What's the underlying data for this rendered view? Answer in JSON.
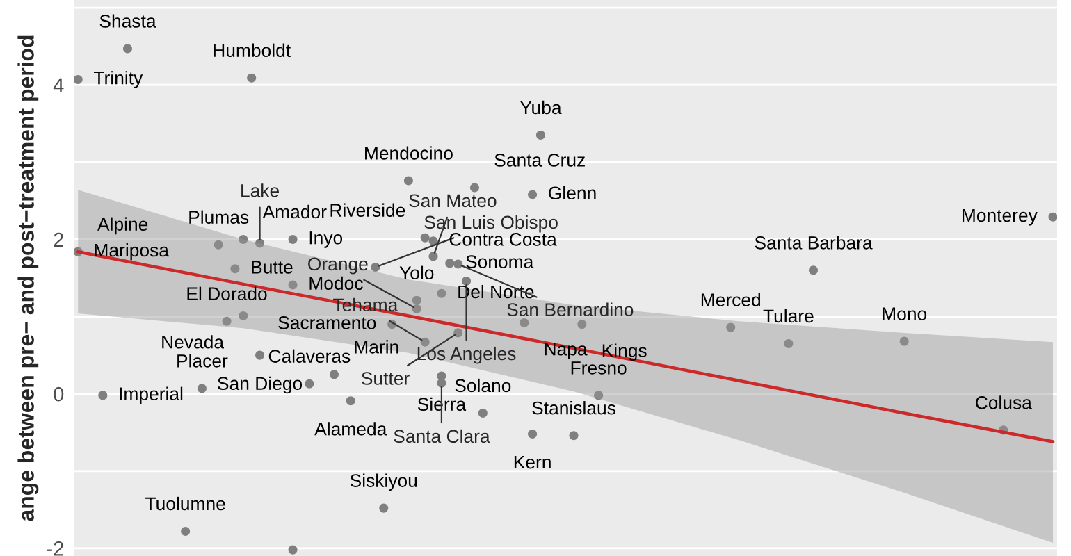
{
  "chart_data": {
    "type": "scatter",
    "ylabel": "ange between pre− and post−treatment period",
    "categories": [
      null,
      null,
      null,
      null,
      null,
      null,
      null,
      null,
      null,
      null,
      null,
      null,
      null,
      null,
      null,
      null,
      null,
      null,
      null,
      null,
      null,
      null,
      null,
      null,
      null,
      null,
      null,
      null,
      null,
      null,
      null,
      null,
      null,
      null,
      null,
      null,
      null,
      null,
      null,
      null,
      null,
      null,
      null,
      null,
      null,
      null,
      null,
      null,
      null,
      null,
      null,
      null,
      null,
      null,
      null,
      null,
      null,
      null,
      null,
      null,
      null,
      null,
      null,
      null,
      null,
      null,
      null,
      null,
      null,
      null,
      null,
      null,
      null,
      null,
      null,
      null,
      null,
      null,
      null,
      null,
      null,
      null,
      null,
      null,
      null,
      null,
      null,
      null,
      null,
      null,
      null,
      null,
      null,
      null,
      null,
      null,
      null,
      null,
      null,
      null,
      null,
      null,
      null,
      null,
      null,
      null,
      null,
      null,
      null,
      null,
      null,
      null,
      null,
      null,
      null,
      null,
      null,
      null,
      null
    ],
    "ylim": [
      -2.1,
      5.1
    ],
    "yticks": [
      -2,
      {
        "value": -1,
        "label": null
      },
      0,
      {
        "value": 1,
        "label": null
      },
      2,
      {
        "value": 3,
        "label": null
      },
      4,
      {
        "value": 5,
        "label": null
      }
    ],
    "tick_labels": "y",
    "grid": true,
    "series": [
      {
        "color": "#7f7f7f",
        "marker": "circle",
        "values": [
          4.07,
          null,
          null,
          -0.02,
          null,
          null,
          4.47,
          null,
          null,
          null,
          null,
          null,
          null,
          -1.78,
          null,
          0.07,
          null,
          1.93,
          0.94,
          1.62,
          2.0,
          4.09,
          1.95,
          null,
          null,
          null,
          2.0,
          null,
          0.13,
          null,
          null,
          0.25,
          null,
          -0.09,
          null,
          null,
          1.64,
          -1.48,
          0.9,
          null,
          2.76,
          1.21,
          2.02,
          1.98,
          1.3,
          1.69,
          1.68,
          1.46,
          2.67,
          -0.25,
          null,
          null,
          null,
          null,
          0.92,
          2.58,
          3.35,
          null,
          null,
          null,
          -0.54,
          0.9,
          null,
          -0.02,
          null,
          null,
          null,
          null,
          null,
          null,
          null,
          null,
          null,
          null,
          null,
          null,
          null,
          null,
          null,
          0.86,
          null,
          null,
          null,
          null,
          null,
          null,
          0.65,
          null,
          null,
          1.6,
          null,
          null,
          null,
          null,
          null,
          null,
          null,
          null,
          null,
          null,
          0.68,
          null,
          null,
          null,
          null,
          null,
          null,
          null,
          null,
          null,
          null,
          null,
          -0.47,
          null,
          null,
          null,
          null,
          null,
          2.29
        ],
        "value_labels": [
          "Trinity",
          null,
          null,
          "Imperial",
          null,
          null,
          "Shasta",
          null,
          null,
          null,
          null,
          null,
          null,
          "Tuolumne",
          null,
          "Placer",
          null,
          "Plumas",
          "El Dorado",
          "Butte",
          "Amador",
          "Humboldt",
          "Lake",
          null,
          null,
          null,
          "Inyo",
          null,
          "Calaveras",
          null,
          null,
          "Marin",
          null,
          "Alameda",
          null,
          null,
          "San Luis Obispo",
          "Siskiyou",
          "Sacramento",
          null,
          "Mendocino",
          "Yolo",
          "Riverside",
          "Contra Costa",
          "Del Norte",
          "Sonoma",
          "San Bernardino",
          "Los Angeles",
          "Santa Cruz",
          "Solano",
          null,
          null,
          null,
          null,
          "Napa",
          "Glenn",
          "Yuba",
          null,
          null,
          null,
          "Stanislaus",
          "Kings",
          null,
          "Fresno",
          null,
          null,
          null,
          null,
          null,
          null,
          null,
          null,
          null,
          null,
          null,
          null,
          null,
          null,
          null,
          "Merced",
          null,
          null,
          null,
          null,
          null,
          null,
          "Tulare",
          null,
          null,
          "Santa Barbara",
          null,
          null,
          null,
          null,
          null,
          null,
          null,
          null,
          null,
          null,
          "Mono",
          null,
          null,
          null,
          null,
          null,
          null,
          null,
          null,
          null,
          null,
          null,
          "Colusa",
          null,
          null,
          null,
          null,
          null,
          "Monterey"
        ]
      },
      {
        "color": "#7f7f7f",
        "marker": "circle",
        "values": [
          1.84,
          null,
          null,
          null,
          null,
          null,
          null,
          null,
          null,
          null,
          null,
          null,
          null,
          null,
          null,
          null,
          null,
          null,
          null,
          null,
          1.01,
          null,
          0.5,
          null,
          null,
          null,
          1.41,
          null,
          null,
          null,
          null,
          null,
          null,
          null,
          null,
          null,
          null,
          null,
          null,
          null,
          null,
          1.1,
          0.67,
          1.78,
          0.23,
          null,
          0.79,
          null,
          null,
          null,
          null,
          null,
          null,
          null,
          null,
          -0.52,
          null,
          null,
          null,
          null,
          null,
          null,
          null,
          null,
          null,
          null,
          null,
          null,
          null,
          null,
          null,
          null,
          null,
          null,
          null,
          null,
          null,
          null,
          null,
          null,
          null,
          null,
          null,
          null,
          null,
          null,
          null,
          null,
          null,
          null,
          null,
          null,
          null,
          null,
          null,
          null,
          null,
          null,
          null,
          null,
          null,
          null,
          null,
          null,
          null,
          null,
          null,
          null,
          null,
          null,
          null,
          null,
          null,
          null,
          null,
          null,
          null,
          null,
          null
        ],
        "value_labels": [
          "Mariposa",
          null,
          null,
          null,
          null,
          null,
          null,
          null,
          null,
          null,
          null,
          null,
          null,
          null,
          null,
          null,
          null,
          null,
          null,
          null,
          "Nevada",
          null,
          "San Diego",
          null,
          null,
          null,
          "Modoc",
          null,
          null,
          null,
          null,
          null,
          null,
          null,
          null,
          null,
          null,
          null,
          null,
          null,
          null,
          "Orange",
          "Tehama",
          "San Mateo",
          "Sierra",
          null,
          "Sutter",
          null,
          null,
          null,
          null,
          null,
          null,
          null,
          null,
          "Kern",
          null,
          null,
          null,
          null,
          null,
          null,
          null,
          null,
          null,
          null,
          null,
          null,
          null,
          null,
          null,
          null,
          null,
          null,
          null,
          null,
          null,
          null,
          null,
          null,
          null,
          null,
          null,
          null,
          null,
          null,
          null,
          null,
          null,
          null,
          null,
          null,
          null,
          null,
          null,
          null,
          null,
          null,
          null,
          null,
          null,
          null,
          null,
          null,
          null,
          null,
          null,
          null,
          null,
          null,
          null,
          null,
          null,
          null,
          null,
          null,
          null,
          null,
          null
        ]
      },
      {
        "color": "#7f7f7f",
        "marker": "circle",
        "values": [
          1.84,
          null,
          null,
          null,
          null,
          null,
          null,
          null,
          null,
          null,
          null,
          null,
          null,
          null,
          null,
          null,
          null,
          null,
          null,
          null,
          null,
          null,
          null,
          null,
          null,
          null,
          -2.02,
          null,
          null,
          null,
          null,
          null,
          null,
          null,
          null,
          null,
          null,
          null,
          null,
          null,
          null,
          null,
          null,
          null,
          0.14,
          null,
          null,
          null,
          null,
          null,
          null,
          null,
          null,
          null,
          null,
          null,
          null,
          null,
          null,
          null,
          null,
          null,
          null,
          null,
          null,
          null,
          null,
          null,
          null,
          null,
          null,
          null,
          null,
          null,
          null,
          null,
          null,
          null,
          null,
          null,
          null,
          null,
          null,
          null,
          null,
          null,
          null,
          null,
          null,
          null,
          null,
          null,
          null,
          null,
          null,
          null,
          null,
          null,
          null,
          null,
          null,
          null,
          null,
          null,
          null,
          null,
          null,
          null,
          null,
          null,
          null,
          null,
          null,
          null,
          null,
          null,
          null,
          null,
          null
        ],
        "value_labels": [
          "Alpine",
          null,
          null,
          null,
          null,
          null,
          null,
          null,
          null,
          null,
          null,
          null,
          null,
          null,
          null,
          null,
          null,
          null,
          null,
          null,
          null,
          null,
          null,
          null,
          null,
          null,
          null,
          null,
          null,
          null,
          null,
          null,
          null,
          null,
          null,
          null,
          null,
          null,
          null,
          null,
          null,
          null,
          null,
          null,
          "Santa Clara",
          null,
          null,
          null,
          null,
          null,
          null,
          null,
          null,
          null,
          null,
          null,
          null,
          null,
          null,
          null,
          null,
          null,
          null,
          null,
          null,
          null,
          null,
          null,
          null,
          null,
          null,
          null,
          null,
          null,
          null,
          null,
          null,
          null,
          null,
          null,
          null,
          null,
          null,
          null,
          null,
          null,
          null,
          null,
          null,
          null,
          null,
          null,
          null,
          null,
          null,
          null,
          null,
          null,
          null,
          null,
          null,
          null,
          null,
          null,
          null,
          null,
          null,
          null,
          null,
          null,
          null,
          null,
          null,
          null,
          null,
          null,
          null,
          null,
          null
        ]
      },
      {
        "type": "line",
        "color": "#cc2a2a",
        "values": [
          1.84,
          null,
          null,
          null,
          null,
          null,
          null,
          null,
          null,
          null,
          null,
          null,
          null,
          null,
          null,
          null,
          null,
          null,
          null,
          null,
          1.42,
          null,
          null,
          null,
          null,
          null,
          null,
          null,
          null,
          null,
          null,
          null,
          null,
          null,
          null,
          null,
          null,
          null,
          null,
          null,
          1.01,
          null,
          null,
          null,
          null,
          null,
          null,
          null,
          null,
          null,
          null,
          null,
          null,
          null,
          null,
          null,
          null,
          null,
          null,
          null,
          0.59,
          null,
          null,
          null,
          null,
          null,
          null,
          null,
          null,
          null,
          null,
          null,
          null,
          null,
          null,
          null,
          null,
          null,
          null,
          null,
          0.17,
          null,
          null,
          null,
          null,
          null,
          null,
          null,
          null,
          null,
          null,
          null,
          null,
          null,
          null,
          null,
          null,
          null,
          null,
          null,
          -0.25,
          null,
          null,
          null,
          null,
          null,
          null,
          null,
          null,
          null,
          null,
          null,
          null,
          null,
          null,
          null,
          null,
          null,
          -0.62
        ],
        "lower": [
          1.04,
          null,
          null,
          null,
          null,
          null,
          null,
          null,
          null,
          null,
          null,
          null,
          null,
          null,
          null,
          null,
          null,
          null,
          null,
          null,
          0.85,
          null,
          null,
          null,
          null,
          null,
          null,
          null,
          null,
          null,
          null,
          null,
          null,
          null,
          null,
          null,
          null,
          null,
          null,
          null,
          0.53,
          null,
          null,
          null,
          null,
          null,
          null,
          null,
          null,
          null,
          null,
          null,
          null,
          null,
          null,
          null,
          null,
          null,
          null,
          null,
          0.03,
          null,
          null,
          null,
          null,
          null,
          null,
          null,
          null,
          null,
          null,
          null,
          null,
          null,
          null,
          null,
          null,
          null,
          null,
          null,
          -0.6,
          null,
          null,
          null,
          null,
          null,
          null,
          null,
          null,
          null,
          null,
          null,
          null,
          null,
          null,
          null,
          null,
          null,
          null,
          null,
          -1.28,
          null,
          null,
          null,
          null,
          null,
          null,
          null,
          null,
          null,
          null,
          null,
          null,
          null,
          null,
          null,
          null,
          null,
          -1.93
        ],
        "upper": [
          2.64,
          null,
          null,
          null,
          null,
          null,
          null,
          null,
          null,
          null,
          null,
          null,
          null,
          null,
          null,
          null,
          null,
          null,
          null,
          null,
          2.0,
          null,
          null,
          null,
          null,
          null,
          null,
          null,
          null,
          null,
          null,
          null,
          null,
          null,
          null,
          null,
          null,
          null,
          null,
          null,
          1.48,
          null,
          null,
          null,
          null,
          null,
          null,
          null,
          null,
          null,
          null,
          null,
          null,
          null,
          null,
          null,
          null,
          null,
          null,
          null,
          1.15,
          null,
          null,
          null,
          null,
          null,
          null,
          null,
          null,
          null,
          null,
          null,
          null,
          null,
          null,
          null,
          null,
          null,
          null,
          null,
          0.94,
          null,
          null,
          null,
          null,
          null,
          null,
          null,
          null,
          null,
          null,
          null,
          null,
          null,
          null,
          null,
          null,
          null,
          null,
          null,
          0.79,
          null,
          null,
          null,
          null,
          null,
          null,
          null,
          null,
          null,
          null,
          null,
          null,
          null,
          null,
          null,
          null,
          null,
          0.67
        ]
      }
    ]
  }
}
